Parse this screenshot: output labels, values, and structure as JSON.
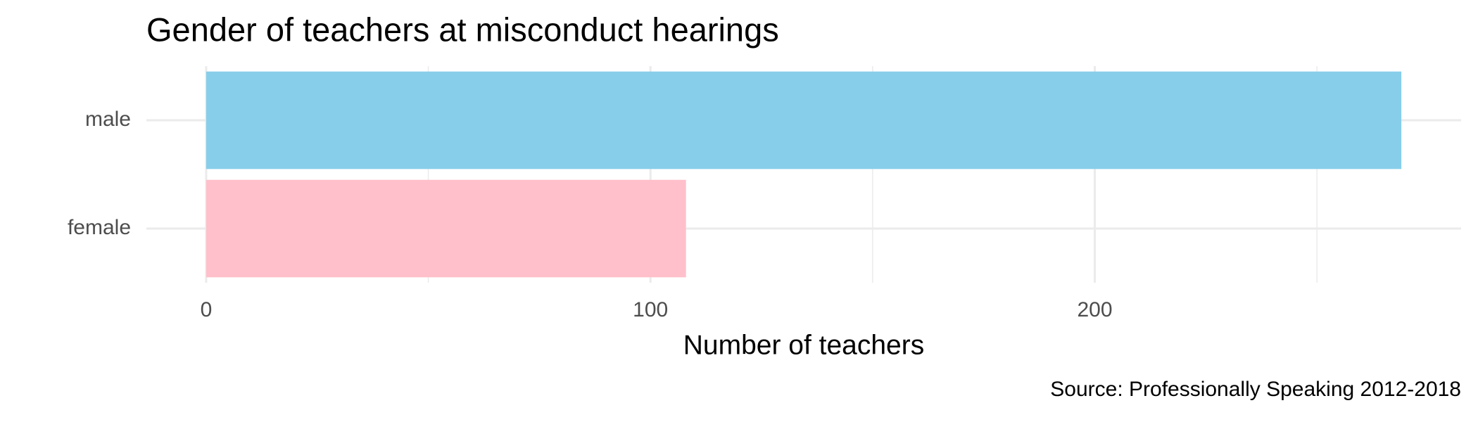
{
  "chart_data": {
    "type": "bar",
    "orientation": "horizontal",
    "title": "Gender of teachers at misconduct hearings",
    "xlabel": "Number of teachers",
    "caption": "Source: Professionally Speaking 2012-2018",
    "categories": [
      "male",
      "female"
    ],
    "values": [
      269,
      108
    ],
    "colors": [
      "#87ceeb",
      "#ffc0cb"
    ],
    "xlim": [
      -13.45,
      282.45
    ],
    "xticks": [
      0,
      100,
      200
    ],
    "minor_xticks": [
      50,
      150,
      250
    ],
    "grid": true
  }
}
